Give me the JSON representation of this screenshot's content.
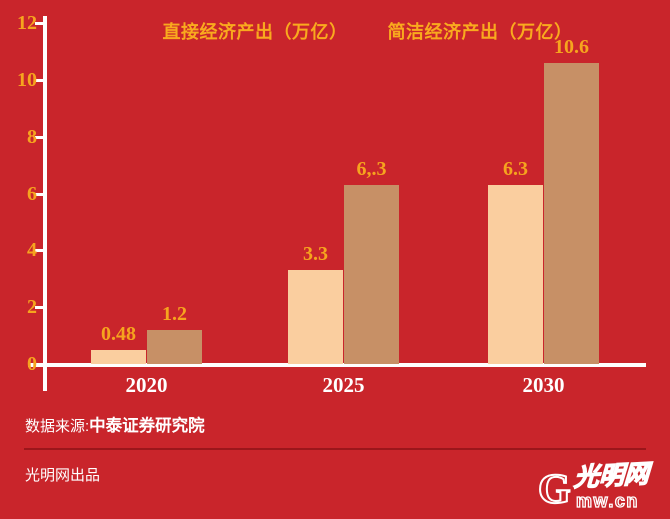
{
  "chart_data": {
    "type": "bar",
    "title": "",
    "categories": [
      "2020",
      "2025",
      "2030"
    ],
    "series": [
      {
        "name": "直接经济产出（万亿）",
        "values": [
          0.48,
          3.3,
          6.3
        ],
        "value_labels": [
          "0.48",
          "3.3",
          "6.3"
        ],
        "color": "#FACE9F"
      },
      {
        "name": "简洁经济产出（万亿）",
        "values": [
          1.2,
          6.3,
          10.6
        ],
        "value_labels": [
          "1.2",
          "6,.3",
          "10.6"
        ],
        "color": "#C79066"
      }
    ],
    "xlabel": "",
    "ylabel": "",
    "ylim": [
      0,
      12
    ],
    "y_ticks": [
      0,
      2,
      4,
      6,
      8,
      10,
      12
    ],
    "grid": false,
    "legend_position": "top"
  },
  "footer": {
    "source_prefix": "数据来源:",
    "source_name": "中泰证券研究院",
    "producer": "光明网出品"
  },
  "logo": {
    "g": "G",
    "script": "光明网",
    "domain": "mw.cn"
  },
  "colors": {
    "background": "#C9252B",
    "axis": "#FFFFFF",
    "tick_label": "#F6A41E",
    "value_label": "#F6A41E",
    "legend_text": "#F9AA1E",
    "category_label": "#FFFFFF",
    "series1": "#FACE9F",
    "series2": "#C79066",
    "divider": "#9B161B",
    "footer_text": "#FFFFFF"
  }
}
